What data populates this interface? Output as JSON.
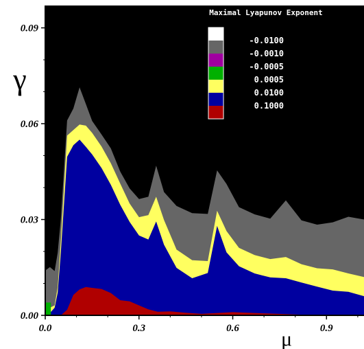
{
  "chart_data": {
    "type": "heatmap",
    "title": "",
    "xlabel": "μ",
    "ylabel": "γ",
    "xlim": [
      0.0,
      1.02
    ],
    "ylim": [
      0.0,
      0.097
    ],
    "x_ticks": [
      0.0,
      0.3,
      0.6,
      0.9
    ],
    "x_tick_labels": [
      "0.0",
      "0.3",
      "0.6",
      "0.9"
    ],
    "y_ticks": [
      0.0,
      0.03,
      0.06,
      0.09
    ],
    "y_tick_labels": [
      "0.00",
      "0.03",
      "0.06",
      "0.09"
    ],
    "background_color": "#000000",
    "legend": {
      "title": "Maximal Lyapunov Exponent",
      "placement": "top-right",
      "entries": [
        {
          "label": "-0.0100",
          "color": "#ffffff"
        },
        {
          "label": "-0.0010",
          "color": "#666666"
        },
        {
          "label": "-0.0005",
          "color": "#a000a0"
        },
        {
          "label": "0.0005",
          "color": "#00b000"
        },
        {
          "label": "0.0100",
          "color": "#ffff60"
        },
        {
          "label": "0.1000",
          "color": "#0000a0"
        },
        {
          "label": "",
          "color": "#b00000"
        }
      ]
    },
    "series": [
      {
        "color": "#666666",
        "x": [
          0.0,
          0.015,
          0.03,
          0.04,
          0.05,
          0.07,
          0.09,
          0.11,
          0.13,
          0.15,
          0.18,
          0.21,
          0.24,
          0.27,
          0.3,
          0.33,
          0.355,
          0.38,
          0.42,
          0.47,
          0.52,
          0.55,
          0.58,
          0.62,
          0.67,
          0.72,
          0.77,
          0.82,
          0.87,
          0.92,
          0.97,
          1.02
        ],
        "y": [
          0.014,
          0.015,
          0.014,
          0.02,
          0.03,
          0.061,
          0.065,
          0.071,
          0.066,
          0.061,
          0.057,
          0.052,
          0.045,
          0.04,
          0.036,
          0.037,
          0.047,
          0.039,
          0.034,
          0.032,
          0.032,
          0.045,
          0.041,
          0.034,
          0.032,
          0.03,
          0.036,
          0.03,
          0.028,
          0.029,
          0.031,
          0.03
        ]
      },
      {
        "color": "#ffff60",
        "x": [
          0.0,
          0.015,
          0.03,
          0.04,
          0.05,
          0.07,
          0.09,
          0.11,
          0.13,
          0.15,
          0.18,
          0.21,
          0.24,
          0.27,
          0.3,
          0.33,
          0.355,
          0.38,
          0.42,
          0.47,
          0.52,
          0.55,
          0.58,
          0.62,
          0.67,
          0.72,
          0.77,
          0.82,
          0.87,
          0.92,
          0.97,
          1.02
        ],
        "y": [
          0.002,
          0.002,
          0.003,
          0.009,
          0.024,
          0.056,
          0.058,
          0.06,
          0.059,
          0.057,
          0.053,
          0.048,
          0.041,
          0.035,
          0.031,
          0.031,
          0.037,
          0.03,
          0.021,
          0.017,
          0.017,
          0.033,
          0.026,
          0.021,
          0.019,
          0.018,
          0.018,
          0.016,
          0.015,
          0.014,
          0.013,
          0.012
        ]
      },
      {
        "color": "#0000a0",
        "x": [
          0.0,
          0.015,
          0.03,
          0.04,
          0.05,
          0.07,
          0.09,
          0.11,
          0.13,
          0.15,
          0.18,
          0.21,
          0.24,
          0.27,
          0.3,
          0.33,
          0.355,
          0.38,
          0.42,
          0.47,
          0.52,
          0.55,
          0.58,
          0.62,
          0.67,
          0.72,
          0.77,
          0.82,
          0.87,
          0.92,
          0.97,
          1.02
        ],
        "y": [
          0.001,
          0.001,
          0.002,
          0.007,
          0.02,
          0.05,
          0.053,
          0.055,
          0.053,
          0.05,
          0.046,
          0.041,
          0.035,
          0.029,
          0.025,
          0.024,
          0.029,
          0.022,
          0.015,
          0.012,
          0.013,
          0.028,
          0.02,
          0.015,
          0.013,
          0.012,
          0.012,
          0.01,
          0.009,
          0.008,
          0.007,
          0.006
        ]
      },
      {
        "color": "#b00000",
        "x": [
          0.0,
          0.05,
          0.07,
          0.09,
          0.11,
          0.13,
          0.15,
          0.18,
          0.21,
          0.24,
          0.27,
          0.3,
          0.33,
          0.36,
          0.4,
          0.45,
          0.5,
          0.6,
          0.7,
          0.8,
          0.9,
          1.02
        ],
        "y": [
          0.0,
          0.0,
          0.002,
          0.006,
          0.008,
          0.009,
          0.009,
          0.008,
          0.007,
          0.005,
          0.004,
          0.003,
          0.002,
          0.0015,
          0.001,
          0.0008,
          0.0007,
          0.0006,
          0.0005,
          0.0004,
          0.0003,
          0.0002
        ]
      }
    ]
  }
}
